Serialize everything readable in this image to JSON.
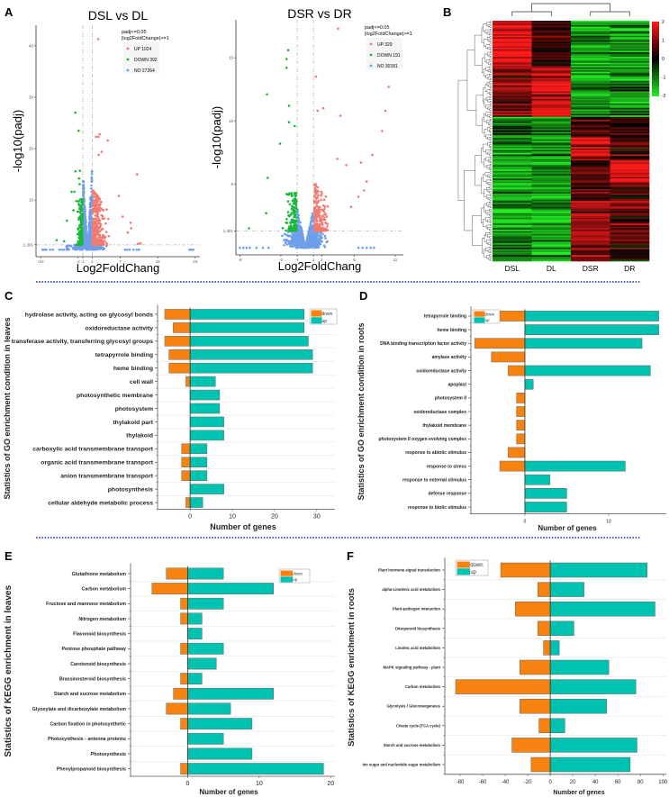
{
  "panel_labels": [
    "A",
    "B",
    "C",
    "D",
    "E",
    "F"
  ],
  "colors": {
    "up_point": "#f07b72",
    "down_point": "#19b83a",
    "no_point": "#6f9eea",
    "bar_down": "#f7820f",
    "bar_up": "#00c2b0",
    "separator": "#2233bb",
    "heat_high": "#ff1a1a",
    "heat_mid": "#000000",
    "heat_low": "#22ee22"
  },
  "chart_data": [
    {
      "id": "volcano-left",
      "type": "scatter",
      "title": "DSL vs DL",
      "xlabel": "Log2FoldChang",
      "ylabel": "-log10(padj)",
      "legend": {
        "title1": "padj<=0.05",
        "title2": "|log2FoldChange|>=1",
        "position": "top-right",
        "entries": [
          {
            "name": "UP 1024",
            "class": "up"
          },
          {
            "name": "DOWN 392",
            "class": "down"
          },
          {
            "name": "NO 27264",
            "class": "no"
          }
        ]
      },
      "counts": {
        "up": 1024,
        "down": 392,
        "no": 27264
      },
      "thresholds": {
        "log2fc": [
          -1,
          1
        ],
        "padj_line": 1.301
      },
      "xticks": [
        "-10",
        "-2",
        "-1",
        "1",
        "7",
        "15",
        "23"
      ],
      "xtick_values": [
        -10,
        -2,
        -1,
        1,
        7,
        15,
        23
      ],
      "yticks": [
        "1.301",
        "10",
        "20",
        "30",
        "40"
      ],
      "ytick_values": [
        1.301,
        10,
        20,
        30,
        40
      ],
      "xlim": [
        -11,
        24
      ],
      "ylim": [
        -1,
        44
      ]
    },
    {
      "id": "volcano-right",
      "type": "scatter",
      "title": "DSR vs DR",
      "xlabel": "Log2FoldChang",
      "ylabel": "-log10(padj)",
      "legend": {
        "title1": "padj<=0.05",
        "title2": "|log2FoldChange|>=1",
        "position": "top-right",
        "entries": [
          {
            "name": "UP 329",
            "class": "up"
          },
          {
            "name": "DOWN 191",
            "class": "down"
          },
          {
            "name": "NO 30181",
            "class": "no"
          }
        ]
      },
      "counts": {
        "up": 329,
        "down": 191,
        "no": 30181
      },
      "thresholds": {
        "log2fc": [
          -1,
          1
        ],
        "padj_line": 1.301
      },
      "xticks": [
        "-8",
        "-3",
        "-1",
        "1",
        "2",
        "6",
        "11"
      ],
      "xtick_values": [
        -8,
        -3,
        -1,
        1,
        2,
        6,
        11
      ],
      "yticks": [
        "1.301",
        "5",
        "10",
        "15"
      ],
      "ytick_values": [
        1.301,
        5,
        10,
        15
      ],
      "xlim": [
        -8.5,
        12
      ],
      "ylim": [
        -0.6,
        18
      ]
    },
    {
      "id": "heatmap",
      "type": "heatmap",
      "columns": [
        "DSL",
        "DL",
        "DSR",
        "DR"
      ],
      "colorbar": {
        "ticks": [
          "2",
          "1",
          "0",
          "-1",
          "-2"
        ],
        "range": [
          -2,
          2
        ]
      },
      "row_blocks": [
        {
          "share": 0.19,
          "values": [
            1.8,
            0.4,
            -1.2,
            -1.2
          ]
        },
        {
          "share": 0.21,
          "values": [
            1.0,
            1.5,
            -1.3,
            -1.2
          ]
        },
        {
          "share": 0.08,
          "values": [
            -0.8,
            -1.0,
            0.3,
            0.3
          ]
        },
        {
          "share": 0.1,
          "values": [
            -1.0,
            -1.0,
            1.8,
            0.8
          ]
        },
        {
          "share": 0.09,
          "values": [
            -1.2,
            -1.2,
            0.5,
            1.8
          ]
        },
        {
          "share": 0.08,
          "values": [
            -1.3,
            -1.3,
            0.6,
            0.9
          ]
        },
        {
          "share": 0.18,
          "values": [
            -1.3,
            -1.4,
            1.3,
            0.8
          ]
        },
        {
          "share": 0.07,
          "values": [
            -1.0,
            -1.4,
            1.0,
            0.3
          ]
        }
      ]
    },
    {
      "id": "go-leaves",
      "type": "bar",
      "ylabel": "Statistics of GO enrichment condition in leaves",
      "xlabel": "Number of genes",
      "categories": [
        "hydrolase activity, acting on glycosyl bonds",
        "oxidoreductase activity",
        "transferase activity, transferring glycosyl groups",
        "tetrapyrrole binding",
        "heme binding",
        "cell wall",
        "photosynthetic membrane",
        "photosystem",
        "thylakoid part",
        "thylakoid",
        "carboxylic acid transmembrane transport",
        "organic acid transmembrane transport",
        "anion transmembrane transport",
        "photosynthesis",
        "cellular aldehyde metabolic process"
      ],
      "series": [
        {
          "name": "down",
          "values": [
            -6,
            -4,
            -6,
            -5,
            -5,
            -1,
            0,
            0,
            0,
            0,
            -2,
            -2,
            -2,
            0,
            -1
          ]
        },
        {
          "name": "up",
          "values": [
            27,
            27,
            28,
            29,
            29,
            6,
            7,
            7,
            8,
            8,
            4,
            4,
            4,
            8,
            3
          ]
        }
      ],
      "xticks": [
        0,
        10,
        20,
        30
      ],
      "xlim": [
        -7.7,
        34.3
      ],
      "legend": "top-right",
      "grid": true
    },
    {
      "id": "go-roots",
      "type": "bar",
      "ylabel": "Statistics of GO enrichment condition in roots",
      "xlabel": "Number of genes",
      "categories": [
        "tetrapyrrole binding",
        "heme binding",
        "DNA binding transcription factor activity",
        "amylase activity",
        "oxidoreductase activity",
        "apoplast",
        "photosystem II",
        "oxidoreductase complex",
        "thylakoid membrane",
        "photosystem II oxygen evolving complex",
        "response to abiotic stimulus",
        "response to stress",
        "response to external stimulus",
        "defense response",
        "response to biotic stimulus"
      ],
      "series": [
        {
          "name": "down",
          "values": [
            -3,
            0,
            -6,
            -4,
            -2,
            0,
            -1,
            -1,
            -1,
            -1,
            -2,
            -3,
            0,
            0,
            0
          ]
        },
        {
          "name": "up",
          "values": [
            16,
            16,
            14,
            0,
            15,
            1,
            0,
            0,
            0,
            0,
            0,
            12,
            3,
            5,
            5
          ]
        }
      ],
      "xticks": [
        0,
        10
      ],
      "xlim": [
        -6.45,
        16.9
      ],
      "legend": "top-left",
      "grid": false
    },
    {
      "id": "kegg-leaves",
      "type": "bar",
      "ylabel": "Statistics of KEGG enrichment in leaves",
      "xlabel": "Number of genes",
      "categories": [
        "Glutathione metabolism",
        "Carbon metabolism",
        "Fructose and mannose metabolism",
        "Nitrogen metabolism",
        "Flavonoid biosynthesis",
        "Pentose phosphate pathway",
        "Carotenoid biosynthesis",
        "Brassinosteroid biosynthesis",
        "Starch and sucrose metabolism",
        "Glyoxylate and dicarboxylate metabolism",
        "Carbon fixation in photosynthetic",
        "Photosynthesis - antenna proteins",
        "Photosynthesis",
        "Phenylpropanoid biosynthesis"
      ],
      "series": [
        {
          "name": "down",
          "values": [
            -3,
            -5,
            -1,
            -1,
            0,
            -1,
            0,
            -1,
            -2,
            -3,
            -1,
            0,
            0,
            -1
          ]
        },
        {
          "name": "up",
          "values": [
            5,
            12,
            5,
            2,
            2,
            5,
            4,
            2,
            12,
            6,
            9,
            5,
            9,
            19
          ]
        }
      ],
      "xticks": [
        0,
        10,
        20
      ],
      "xlim": [
        -8,
        20.6
      ],
      "legend": "top-right",
      "grid": true
    },
    {
      "id": "kegg-roots",
      "type": "bar",
      "ylabel": "Statistics of KEGG enrichment in roots",
      "xlabel": "Number of genes",
      "categories": [
        "Plant hormone signal transduction",
        "alpha-Linolenic acid metabolism",
        "Plant-pathogen interaction",
        "Diterpenoid biosynthesis",
        "Linoleic acid metabolism",
        "MAPK signaling pathway - plant",
        "Carbon metabolism",
        "Glycolysis / Gluconeogenesis",
        "Citrate cycle (TCA cycle)",
        "Starch and sucrose metabolism",
        "ino sugar and nucleotide sugar metabolism"
      ],
      "series": [
        {
          "name": "down",
          "values": [
            -44,
            -11,
            -31,
            -11,
            -6,
            -27,
            -84,
            -27,
            -10,
            -34,
            -17
          ]
        },
        {
          "name": "up",
          "values": [
            86,
            30,
            93,
            21,
            8,
            52,
            76,
            50,
            13,
            77,
            71
          ]
        }
      ],
      "xticks": [
        -80,
        -60,
        -40,
        -20,
        0,
        20,
        40,
        60,
        80,
        100
      ],
      "xlim": [
        -93.6,
        103
      ],
      "legend": "top-left",
      "grid": true
    }
  ]
}
